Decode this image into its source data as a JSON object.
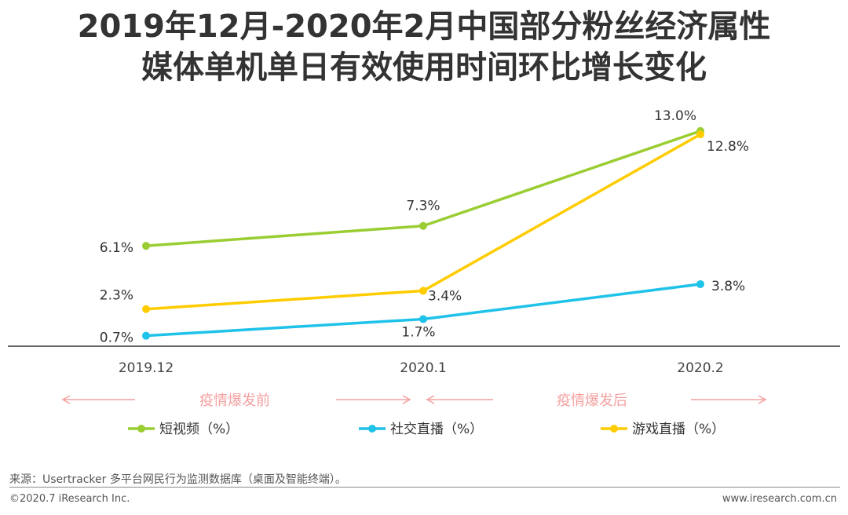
{
  "title_line1": "2019年12月-2020年2月中国部分粉丝经济属性",
  "title_line2": "媒体单机单日有效使用时间环比增长变化",
  "phases": {
    "before": "疫情爆发前",
    "after": "疫情爆发后"
  },
  "colors": {
    "short_video": "#9ACD32",
    "social_live": "#1FC2E8",
    "game_live": "#FFCC00",
    "phase_arrow": "#F4A0A0",
    "axis": "#333333"
  },
  "chart_data": {
    "type": "line",
    "categories": [
      "2019.12",
      "2020.1",
      "2020.2"
    ],
    "unit": "%",
    "series": [
      {
        "name": "短视频（%）",
        "values": [
          6.1,
          7.3,
          13.0
        ],
        "labels": [
          "6.1%",
          "7.3%",
          "13.0%"
        ]
      },
      {
        "name": "社交直播（%）",
        "values": [
          0.7,
          1.7,
          3.8
        ],
        "labels": [
          "0.7%",
          "1.7%",
          "3.8%"
        ]
      },
      {
        "name": "游戏直播（%）",
        "values": [
          2.3,
          3.4,
          12.8
        ],
        "labels": [
          "2.3%",
          "3.4%",
          "12.8%"
        ]
      }
    ],
    "legend_position": "bottom",
    "grid": false
  },
  "source_note": "来源：Usertracker 多平台网民行为监测数据库（桌面及智能终端）。",
  "copyright": "©2020.7 iResearch Inc.",
  "website": "www.iresearch.com.cn"
}
